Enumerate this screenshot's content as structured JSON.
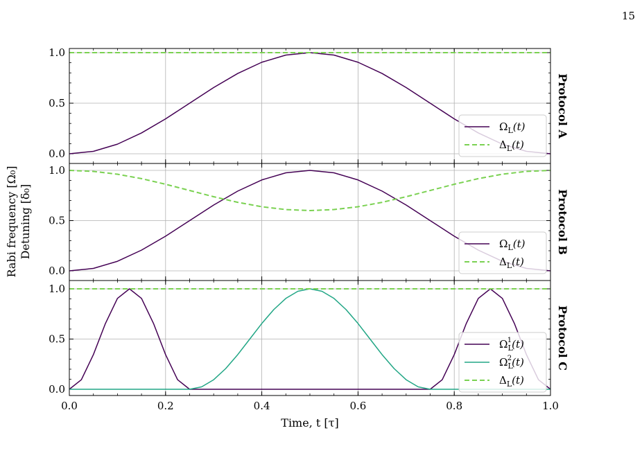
{
  "page_number": "15",
  "colors": {
    "omega_l": "#440154",
    "omega_l2": "#21a685",
    "delta_l": "#7ad151",
    "grid": "#b0b0b0"
  },
  "chart_data": [
    {
      "type": "line",
      "panel_label": "Protocol A",
      "xlim": [
        0,
        1
      ],
      "ylim": [
        0,
        1
      ],
      "yticks": [
        "0.0",
        "0.5",
        "1.0"
      ],
      "grid": true,
      "legend_placement": "lower-right",
      "x": [
        0,
        0.05,
        0.1,
        0.15,
        0.2,
        0.25,
        0.3,
        0.35,
        0.4,
        0.45,
        0.5,
        0.55,
        0.6,
        0.65,
        0.7,
        0.75,
        0.8,
        0.85,
        0.9,
        0.95,
        1.0
      ],
      "series": [
        {
          "name": "Ω_L(t)",
          "style": "solid",
          "color": "#440154",
          "values": [
            0,
            0.024,
            0.095,
            0.206,
            0.345,
            0.5,
            0.655,
            0.794,
            0.905,
            0.976,
            1.0,
            0.976,
            0.905,
            0.794,
            0.655,
            0.5,
            0.345,
            0.206,
            0.095,
            0.024,
            0
          ]
        },
        {
          "name": "Δ_L(t)",
          "style": "dashed",
          "color": "#7ad151",
          "values": [
            1,
            1,
            1,
            1,
            1,
            1,
            1,
            1,
            1,
            1,
            1,
            1,
            1,
            1,
            1,
            1,
            1,
            1,
            1,
            1,
            1
          ]
        }
      ]
    },
    {
      "type": "line",
      "panel_label": "Protocol B",
      "xlim": [
        0,
        1
      ],
      "ylim": [
        0,
        1
      ],
      "yticks": [
        "0.0",
        "0.5",
        "1.0"
      ],
      "grid": true,
      "legend_placement": "lower-right",
      "x": [
        0,
        0.05,
        0.1,
        0.15,
        0.2,
        0.25,
        0.3,
        0.35,
        0.4,
        0.45,
        0.5,
        0.55,
        0.6,
        0.65,
        0.7,
        0.75,
        0.8,
        0.85,
        0.9,
        0.95,
        1.0
      ],
      "series": [
        {
          "name": "Ω_L(t)",
          "style": "solid",
          "color": "#440154",
          "values": [
            0,
            0.024,
            0.095,
            0.206,
            0.345,
            0.5,
            0.655,
            0.794,
            0.905,
            0.976,
            1.0,
            0.976,
            0.905,
            0.794,
            0.655,
            0.5,
            0.345,
            0.206,
            0.095,
            0.024,
            0
          ]
        },
        {
          "name": "Δ_L(t)",
          "style": "dashed",
          "color": "#7ad151",
          "values": [
            1,
            0.99,
            0.962,
            0.918,
            0.862,
            0.8,
            0.738,
            0.682,
            0.638,
            0.61,
            0.6,
            0.61,
            0.638,
            0.682,
            0.738,
            0.8,
            0.862,
            0.918,
            0.962,
            0.99,
            1
          ]
        }
      ]
    },
    {
      "type": "line",
      "panel_label": "Protocol C",
      "xlim": [
        0,
        1
      ],
      "ylim": [
        0,
        1
      ],
      "yticks": [
        "0.0",
        "0.5",
        "1.0"
      ],
      "xticks": [
        "0.0",
        "0.2",
        "0.4",
        "0.6",
        "0.8",
        "1.0"
      ],
      "xlabel": "Time, t [τ]",
      "grid": true,
      "legend_placement": "lower-right",
      "x": [
        0,
        0.025,
        0.05,
        0.075,
        0.1,
        0.125,
        0.15,
        0.175,
        0.2,
        0.225,
        0.25,
        0.275,
        0.3,
        0.325,
        0.35,
        0.375,
        0.4,
        0.425,
        0.45,
        0.475,
        0.5,
        0.525,
        0.55,
        0.575,
        0.6,
        0.625,
        0.65,
        0.675,
        0.7,
        0.725,
        0.75,
        0.775,
        0.8,
        0.825,
        0.85,
        0.875,
        0.9,
        0.925,
        0.95,
        0.975,
        1.0
      ],
      "series": [
        {
          "name": "Ω_L^1(t)",
          "style": "solid",
          "color": "#440154",
          "values": [
            0,
            0.095,
            0.345,
            0.655,
            0.905,
            1.0,
            0.905,
            0.655,
            0.345,
            0.095,
            0,
            0,
            0,
            0,
            0,
            0,
            0,
            0,
            0,
            0,
            0,
            0,
            0,
            0,
            0,
            0,
            0,
            0,
            0,
            0,
            0,
            0.095,
            0.345,
            0.655,
            0.905,
            1.0,
            0.905,
            0.655,
            0.345,
            0.095,
            0
          ]
        },
        {
          "name": "Ω_L^2(t)",
          "style": "solid",
          "color": "#21a685",
          "values": [
            0,
            0,
            0,
            0,
            0,
            0,
            0,
            0,
            0,
            0,
            0,
            0.024,
            0.095,
            0.206,
            0.345,
            0.5,
            0.655,
            0.794,
            0.905,
            0.976,
            1.0,
            0.976,
            0.905,
            0.794,
            0.655,
            0.5,
            0.345,
            0.206,
            0.095,
            0.024,
            0,
            0,
            0,
            0,
            0,
            0,
            0,
            0,
            0,
            0,
            0
          ]
        },
        {
          "name": "Δ_L(t)",
          "style": "dashed",
          "color": "#7ad151",
          "values": [
            1,
            1,
            1,
            1,
            1,
            1,
            1,
            1,
            1,
            1,
            1,
            1,
            1,
            1,
            1,
            1,
            1,
            1,
            1,
            1,
            1,
            1,
            1,
            1,
            1,
            1,
            1,
            1,
            1,
            1,
            1,
            1,
            1,
            1,
            1,
            1,
            1,
            1,
            1,
            1,
            1
          ]
        }
      ]
    }
  ],
  "ylabel_line1": "Rabi frequency [Ω₀]",
  "ylabel_line2": "Detuning [δ₀]",
  "legend_labels": {
    "omega": "Ω",
    "sub_l": "L",
    "delta": "Δ",
    "arg": "(t)",
    "sup1": "1",
    "sup2": "2"
  }
}
